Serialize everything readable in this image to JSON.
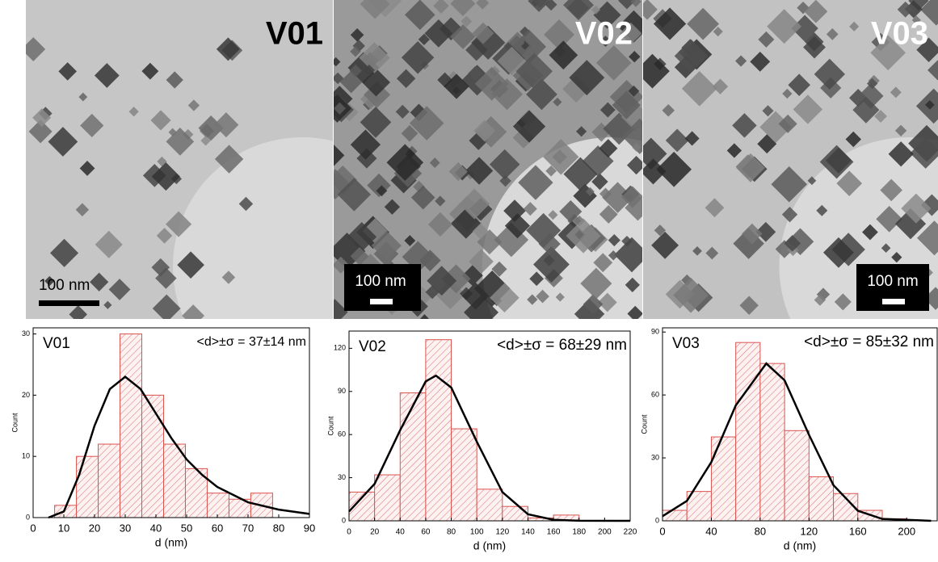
{
  "images": [
    {
      "label": "V01",
      "scale_bar": "100 nm"
    },
    {
      "label": "V02",
      "scale_bar": "100 nm"
    },
    {
      "label": "V03",
      "scale_bar": "100 nm"
    }
  ],
  "chart_data": [
    {
      "type": "histogram",
      "label": "V01",
      "annotation": "<d>±σ = 37±14 nm",
      "xlabel": "d (nm)",
      "ylabel": "Count",
      "color": "#d9534f",
      "bins": [
        7,
        14.1,
        21.2,
        28.3,
        35.4,
        42.5,
        49.6,
        56.7,
        63.8,
        70.9,
        78
      ],
      "counts": [
        2,
        10,
        12,
        30,
        20,
        12,
        8,
        4,
        3,
        4
      ],
      "fit": {
        "x": [
          5,
          10,
          15,
          20,
          25,
          30,
          35,
          40,
          45,
          50,
          55,
          60,
          70,
          80,
          90
        ],
        "y": [
          0,
          1,
          7,
          15,
          21,
          23,
          21,
          17,
          13,
          9.5,
          7,
          5,
          2.5,
          1.3,
          0.6
        ]
      },
      "xlim": [
        0,
        90
      ],
      "xticks": [
        0,
        10,
        20,
        30,
        40,
        50,
        60,
        70,
        80,
        90
      ],
      "ylim": [
        0,
        31
      ],
      "yticks": [
        0,
        10,
        20,
        30
      ]
    },
    {
      "type": "histogram",
      "label": "V02",
      "annotation": "<d>±σ = 68±29 nm",
      "xlabel": "d (nm)",
      "ylabel": "Count",
      "color": "#d9534f",
      "bins": [
        0,
        20,
        40,
        60,
        80,
        100,
        120,
        140,
        160,
        180
      ],
      "counts": [
        20,
        32,
        89,
        126,
        64,
        22,
        10,
        2,
        4
      ],
      "fit": {
        "x": [
          0,
          20,
          40,
          60,
          68,
          80,
          100,
          120,
          140,
          160,
          180,
          220
        ],
        "y": [
          6.5,
          25.7,
          63,
          97,
          101,
          92.7,
          55,
          20,
          4.6,
          0.7,
          0.05,
          0
        ]
      },
      "xlim": [
        0,
        220
      ],
      "xticks": [
        0,
        20,
        40,
        60,
        80,
        100,
        120,
        140,
        160,
        180,
        200,
        220
      ],
      "ylim": [
        0,
        132
      ],
      "yticks": [
        0,
        30,
        60,
        90,
        120
      ]
    },
    {
      "type": "histogram",
      "label": "V03",
      "annotation": "<d>±σ = 85±32 nm",
      "xlabel": "d (nm)",
      "ylabel": "Count",
      "color": "#d9534f",
      "bins": [
        0,
        20,
        40,
        60,
        80,
        100,
        120,
        140,
        160,
        180,
        200
      ],
      "counts": [
        5,
        14,
        40,
        85,
        75,
        43,
        21,
        13,
        5,
        1
      ],
      "fit": {
        "x": [
          0,
          20,
          40,
          60,
          85,
          100,
          120,
          140,
          160,
          180,
          220
        ],
        "y": [
          2.2,
          9.5,
          28,
          55,
          75,
          67,
          41,
          17,
          4.8,
          0.9,
          0
        ]
      },
      "xlim": [
        0,
        225
      ],
      "xticks": [
        0,
        40,
        80,
        120,
        160,
        200
      ],
      "ylim": [
        0,
        92
      ],
      "yticks": [
        0,
        30,
        60,
        90
      ]
    }
  ]
}
